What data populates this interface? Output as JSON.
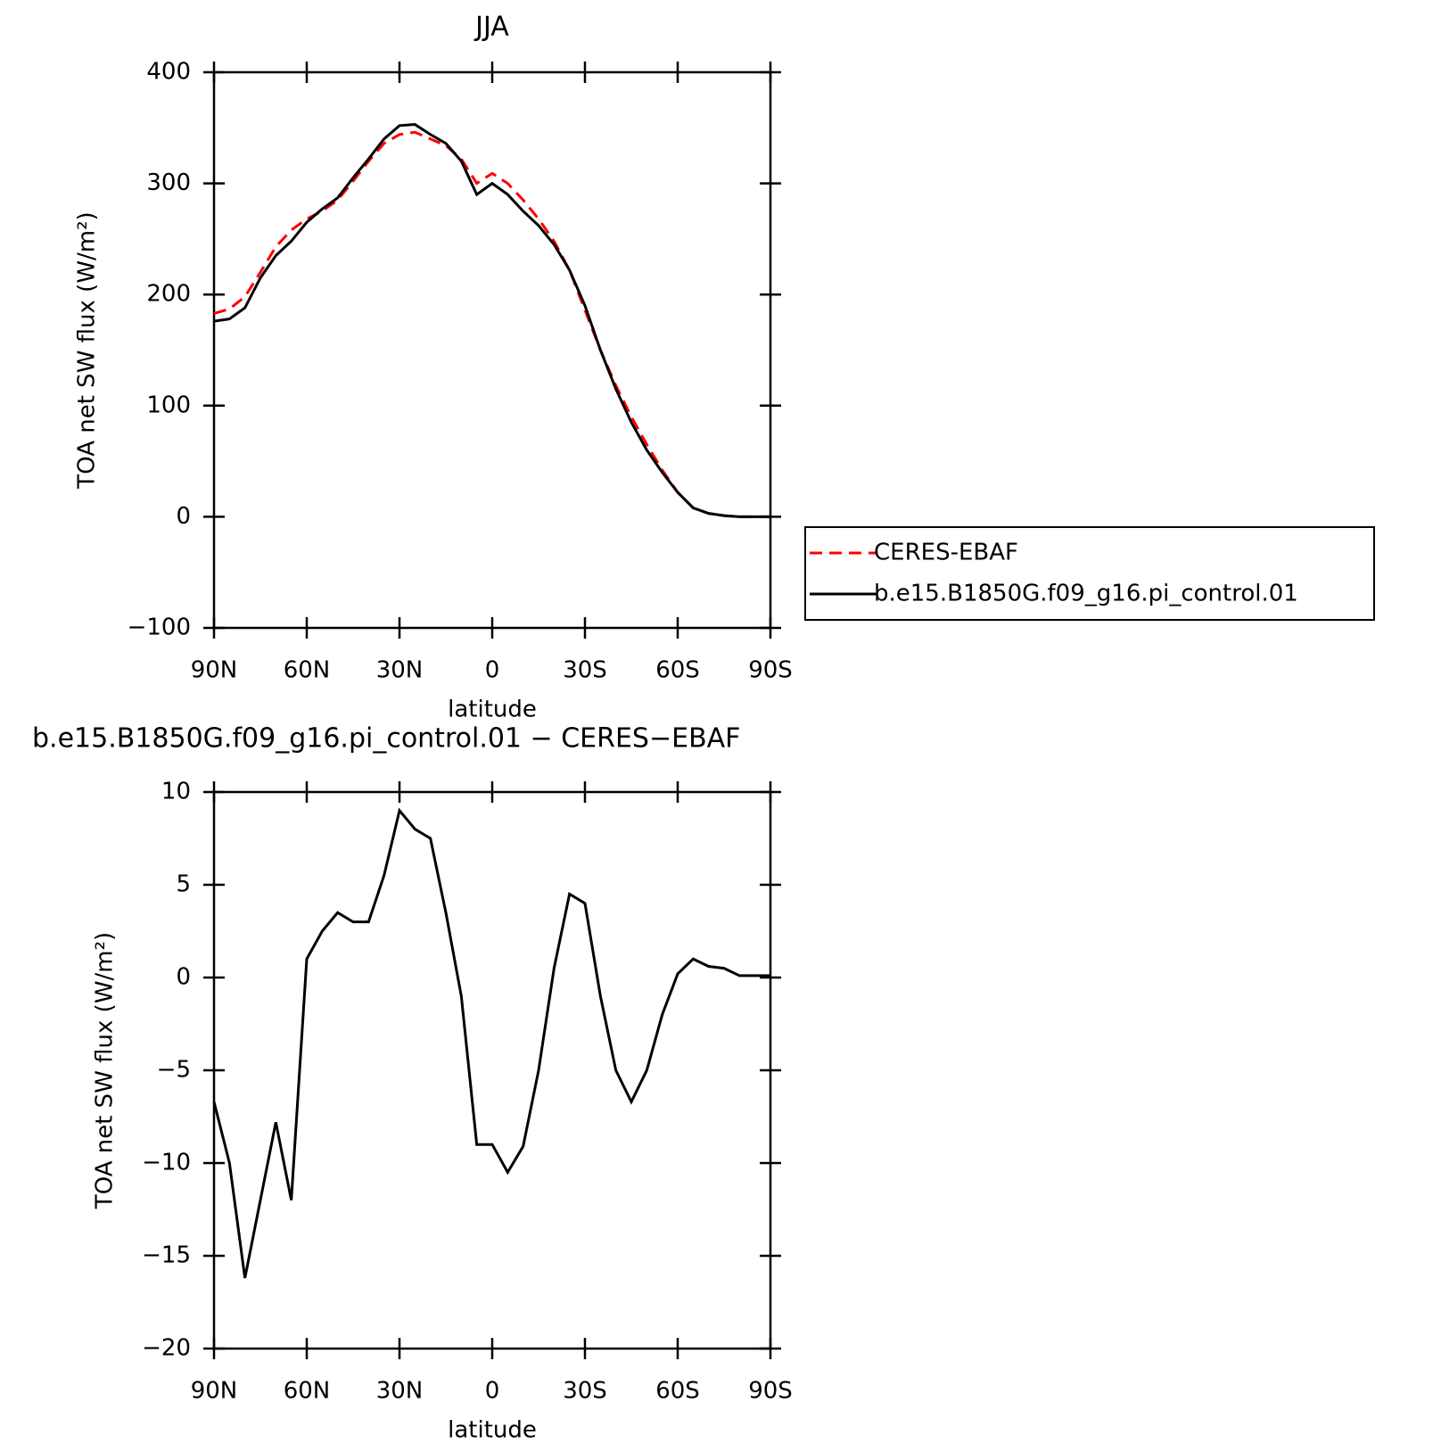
{
  "chart_data": [
    {
      "type": "line",
      "title": "JJA",
      "xlabel": "latitude",
      "ylabel": "TOA net SW flux (W/m²)",
      "x": [
        90,
        85,
        80,
        75,
        70,
        65,
        60,
        55,
        50,
        45,
        40,
        35,
        30,
        25,
        20,
        15,
        10,
        5,
        0,
        -5,
        -10,
        -15,
        -20,
        -25,
        -30,
        -35,
        -40,
        -45,
        -50,
        -55,
        -60,
        -65,
        -70,
        -75,
        -80,
        -85,
        -90
      ],
      "series": [
        {
          "name": "CERES-EBAF",
          "color": "#ff0000",
          "dash": true,
          "values": [
            183,
            187,
            198,
            220,
            243,
            258,
            268,
            275,
            285,
            302,
            320,
            336,
            344,
            346,
            340,
            334,
            322,
            300,
            309,
            300,
            285,
            268,
            248,
            222,
            186,
            150,
            118,
            90,
            65,
            42,
            22,
            8,
            3,
            1,
            0,
            0,
            0
          ]
        },
        {
          "name": "b.e15.B1850G.f09_g16.pi_control.01",
          "color": "#000000",
          "dash": false,
          "values": [
            176,
            178,
            188,
            215,
            235,
            248,
            265,
            277,
            287,
            305,
            322,
            340,
            352,
            353,
            344,
            336,
            320,
            290,
            300,
            290,
            275,
            262,
            245,
            222,
            190,
            150,
            115,
            85,
            60,
            40,
            22,
            8,
            3,
            1,
            0,
            0,
            0
          ]
        }
      ],
      "xlim": [
        90,
        -90
      ],
      "xticks": [
        {
          "value": 90,
          "label": "90N"
        },
        {
          "value": 60,
          "label": "60N"
        },
        {
          "value": 30,
          "label": "30N"
        },
        0,
        {
          "value": -30,
          "label": "30S"
        },
        {
          "value": -60,
          "label": "60S"
        },
        {
          "value": -90,
          "label": "90S"
        }
      ],
      "ylim": [
        -100,
        400
      ],
      "yticks": [
        {
          "value": -100,
          "label": "−100"
        },
        0,
        100,
        200,
        300,
        400
      ],
      "legend": "right-outside"
    },
    {
      "type": "line",
      "title": "b.e15.B1850G.f09_g16.pi_control.01 − CERES−EBAF",
      "xlabel": "latitude",
      "ylabel": "TOA net SW flux (W/m²)",
      "x": [
        90,
        85,
        80,
        75,
        70,
        65,
        60,
        55,
        50,
        45,
        40,
        35,
        30,
        25,
        20,
        15,
        10,
        5,
        0,
        -5,
        -10,
        -15,
        -20,
        -25,
        -30,
        -35,
        -40,
        -45,
        -50,
        -55,
        -60,
        -65,
        -70,
        -75,
        -80,
        -85,
        -90
      ],
      "series": [
        {
          "color": "#000000",
          "dash": false,
          "values": [
            -6.7,
            -10,
            -16.2,
            -12,
            -7.8,
            -12,
            1,
            2.5,
            3.5,
            3,
            3,
            5.5,
            9,
            8,
            7.5,
            3.5,
            -1,
            -9,
            -9,
            -10.5,
            -9.1,
            -5,
            0.5,
            4.5,
            4,
            -1,
            -5,
            -6.7,
            -5,
            -2,
            0.2,
            1,
            0.6,
            0.5,
            0.1,
            0.1,
            0.1
          ]
        }
      ],
      "xlim": [
        90,
        -90
      ],
      "xticks": [
        {
          "value": 90,
          "label": "90N"
        },
        {
          "value": 60,
          "label": "60N"
        },
        {
          "value": 30,
          "label": "30N"
        },
        0,
        {
          "value": -30,
          "label": "30S"
        },
        {
          "value": -60,
          "label": "60S"
        },
        {
          "value": -90,
          "label": "90S"
        }
      ],
      "ylim": [
        -20,
        10
      ],
      "yticks": [
        {
          "value": -20,
          "label": "−20"
        },
        {
          "value": -15,
          "label": "−15"
        },
        {
          "value": -10,
          "label": "−10"
        },
        {
          "value": -5,
          "label": "−5"
        },
        0,
        5,
        10
      ]
    }
  ]
}
